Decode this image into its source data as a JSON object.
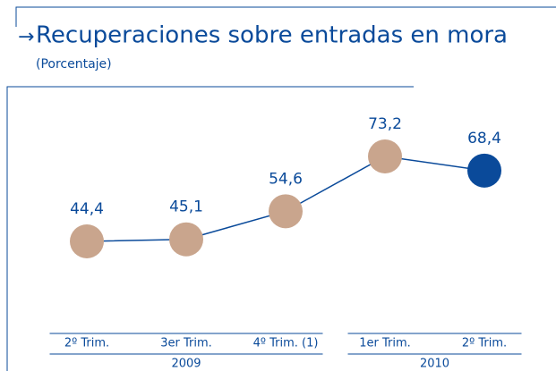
{
  "chart_data": {
    "type": "line",
    "title": "Recuperaciones sobre entradas en mora",
    "subtitle": "(Porcentaje)",
    "categories": [
      "2º Trim.",
      "3er Trim.",
      "4º Trim. (1)",
      "1er Trim.",
      "2º Trim."
    ],
    "groups": [
      {
        "label": "2009",
        "span": 3
      },
      {
        "label": "2010",
        "span": 2
      }
    ],
    "values": [
      44.4,
      45.1,
      54.6,
      73.2,
      68.4
    ],
    "value_labels": [
      "44,4",
      "45,1",
      "54,6",
      "73,2",
      "68,4"
    ],
    "line_color": "#0a4a9a",
    "point_colors": [
      "#c9a58d",
      "#c9a58d",
      "#c9a58d",
      "#c9a58d",
      "#0a4a9a"
    ]
  }
}
